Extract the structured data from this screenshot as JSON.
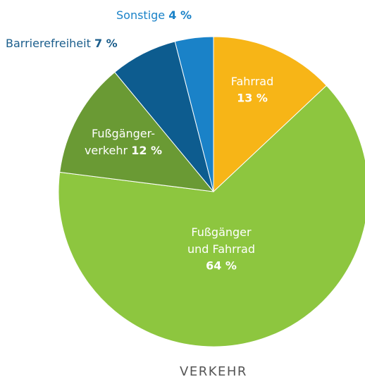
{
  "chart_data": {
    "type": "pie",
    "title": "VERKEHR",
    "categories": [
      [
        "Fahrrad"
      ],
      [
        "Fußgänger",
        "und Fahrrad"
      ],
      [
        "Fußgänger-",
        "verkehr"
      ],
      [
        "Barrierefreiheit"
      ],
      [
        "Sonstige"
      ]
    ],
    "values": [
      13,
      64,
      12,
      7,
      4
    ],
    "value_labels": [
      "13 %",
      "64 %",
      "12 %",
      "7 %",
      "4 %"
    ],
    "colors": [
      "#f7b517",
      "#8dc63f",
      "#6a9a34",
      "#0d5c8f",
      "#1a82c8"
    ]
  }
}
